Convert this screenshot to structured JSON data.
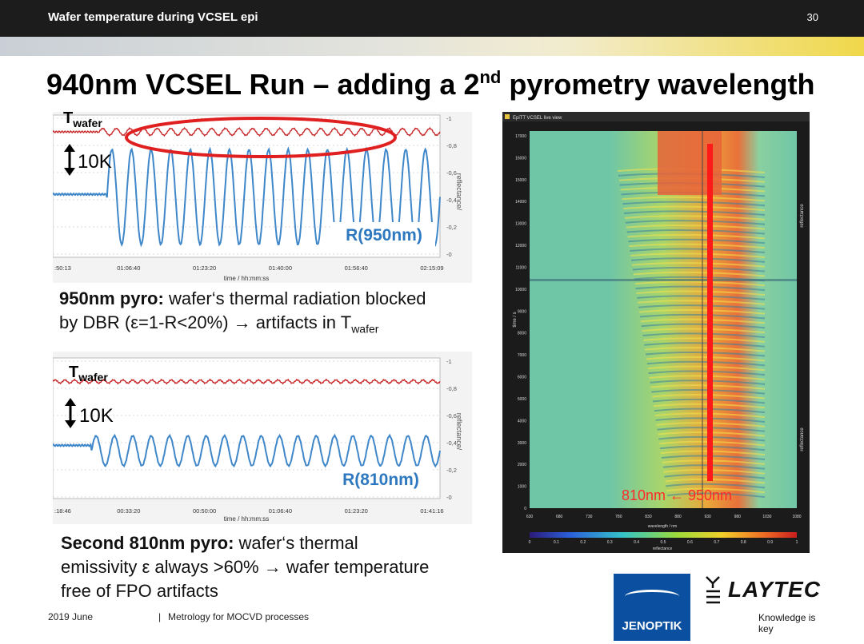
{
  "header": {
    "title": "Wafer temperature during VCSEL epi",
    "slide_number": "30"
  },
  "slide_title": {
    "main": "940nm VCSEL Run – adding a 2",
    "sup": "nd",
    "rest": " pyrometry wavelength"
  },
  "chart_data": [
    {
      "type": "line",
      "id": "top-pyro-chart",
      "overlay_labels": {
        "t_main": "T",
        "t_sub": "wafer",
        "scale": "10K",
        "series_label": "R(950nm)"
      },
      "xlabel": "time / hh:mm:ss",
      "ylabel": "reflectance/",
      "x_ticks": [
        ":50:13",
        "01:06:40",
        "01:23:20",
        "01:40:00",
        "01:56:40",
        "02:15:09"
      ],
      "y_ticks": [
        "1",
        "0,8",
        "0,6",
        "0,4",
        "0,2",
        "0"
      ],
      "ylim": [
        0,
        1
      ],
      "series": [
        {
          "color": "#c8282a",
          "baseline": 0.9,
          "amplitude": 0.025,
          "cycles": 25,
          "start_fraction": 0.12
        },
        {
          "color": "#3f87c9",
          "baseline": 0.42,
          "amplitude": 0.35,
          "cycles": 17,
          "start_fraction": 0.14,
          "flat_value": 0.44
        }
      ],
      "annotation": {
        "type": "ellipse",
        "color": "#e02020"
      }
    },
    {
      "type": "line",
      "id": "bottom-pyro-chart",
      "overlay_labels": {
        "t_main": "T",
        "t_sub": "wafer",
        "scale": "10K",
        "series_label": "R(810nm)"
      },
      "xlabel": "time / hh:mm:ss",
      "ylabel": "reflectance/",
      "x_ticks": [
        ":18:46",
        "00:33:20",
        "00:50:00",
        "01:06:40",
        "01:23:20",
        "01:41:16"
      ],
      "y_ticks": [
        "1",
        "0,8",
        "0,6",
        "0,4",
        "0,2",
        "0"
      ],
      "ylim": [
        0,
        1
      ],
      "series": [
        {
          "color": "#c8282a",
          "baseline": 0.85,
          "amplitude": 0.012,
          "cycles": 40,
          "start_fraction": 0.0
        },
        {
          "color": "#3f87c9",
          "baseline": 0.34,
          "amplitude": 0.11,
          "cycles": 19,
          "start_fraction": 0.1,
          "flat_value": 0.38
        }
      ]
    },
    {
      "type": "heatmap",
      "id": "epitt-live-view",
      "window_title": "EpiTT VCSEL live view",
      "xlabel": "wavelength / nm",
      "ylabel": "time / s",
      "right_label": "reflectance",
      "x_ticks": [
        "630",
        "680",
        "730",
        "780",
        "830",
        "880",
        "930",
        "980",
        "1030",
        "1080"
      ],
      "y_ticks": [
        "17000",
        "16000",
        "15000",
        "14000",
        "13000",
        "12000",
        "11000",
        "10000",
        "9000",
        "8000",
        "7000",
        "6000",
        "5000",
        "4000",
        "3000",
        "2000",
        "1000",
        "0"
      ],
      "colorbar_ticks": [
        "0",
        "0.1",
        "0.2",
        "0.3",
        "0.4",
        "0.5",
        "0.6",
        "0.7",
        "0.8",
        "0.9",
        "1"
      ],
      "colorbar_label": "reflectance",
      "marker_wavelength_nm": 950,
      "marker_color": "#ff1a1a",
      "annotation": "810nm ← 950nm"
    }
  ],
  "captions": {
    "top_bold": "950nm pyro:",
    "top_line1": " wafer‘s thermal radiation blocked",
    "top_line2a": "by DBR (ε=1-R<20%) → artifacts in T",
    "top_line2_sub": "wafer",
    "bottom_bold": "Second 810nm pyro:",
    "bottom_line1": " wafer‘s thermal",
    "bottom_line2": "emissivity ε always >60% → wafer temperature",
    "bottom_line3": "free  of FPO artifacts"
  },
  "footer": {
    "date": "2019 June",
    "separator": "|",
    "topic": "Metrology for MOCVD processes"
  },
  "logos": {
    "jenoptik": "JENOPTIK",
    "laytec": "LAYTEC",
    "laytec_tagline": "Knowledge is key"
  }
}
